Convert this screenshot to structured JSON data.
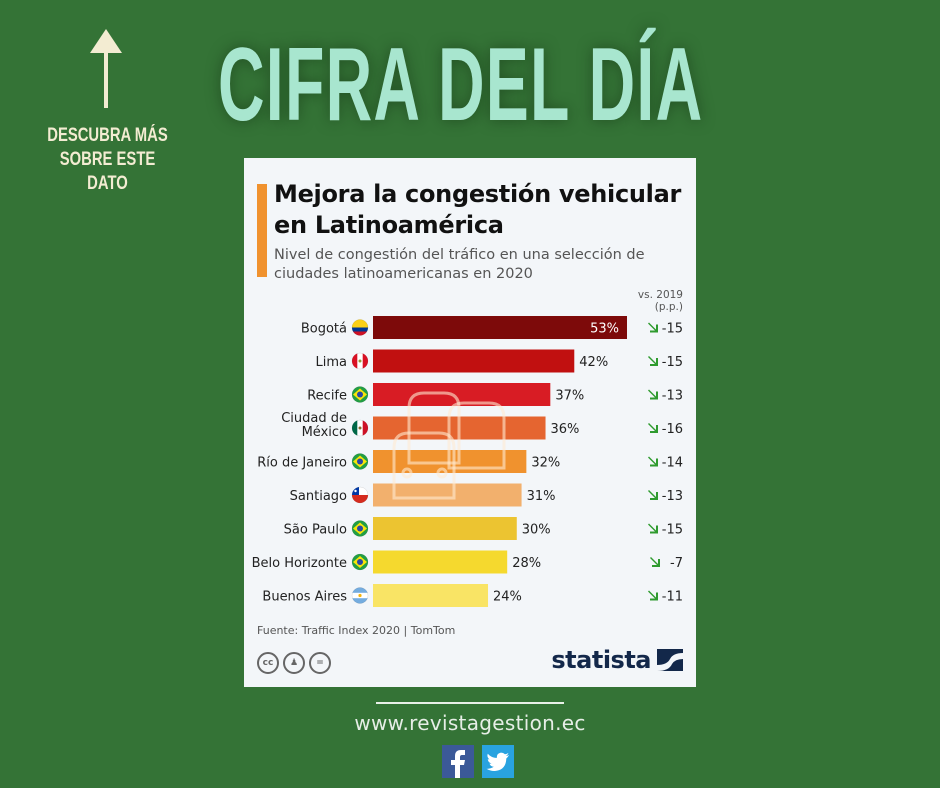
{
  "header": {
    "headline": "CIFRA DEL DÍA",
    "side_note_line1": "DESCUBRA MÁS",
    "side_note_line2": "SOBRE ESTE DATO",
    "arrow_icon": "up-arrow-icon"
  },
  "card": {
    "title": "Mejora la congestión vehicular en Latinoamérica",
    "subtitle": "Nivel de congestión del tráfico en una selección de ciudades latinoamericanas en 2020",
    "vs_label_line1": "vs. 2019",
    "vs_label_line2": "(p.p.)",
    "source": "Fuente: Traffic Index 2020 | TomTom",
    "license_icons": [
      "cc-icon",
      "attribution-icon",
      "no-derivatives-icon"
    ],
    "brand": "statista",
    "accent_color": "#f0922e"
  },
  "chart_data": {
    "type": "bar",
    "orientation": "horizontal",
    "title": "Mejora la congestión vehicular en Latinoamérica",
    "subtitle": "Nivel de congestión del tráfico en una selección de ciudades latinoamericanas en 2020",
    "categories": [
      "Bogotá",
      "Lima",
      "Recife",
      "Ciudad de México",
      "Río de Janeiro",
      "Santiago",
      "São Paulo",
      "Belo Horizonte",
      "Buenos Aires"
    ],
    "values": [
      53,
      42,
      37,
      36,
      32,
      31,
      30,
      28,
      24
    ],
    "value_labels": [
      "53%",
      "42%",
      "37%",
      "36%",
      "32%",
      "31%",
      "30%",
      "28%",
      "24%"
    ],
    "change_vs_2019_pp": [
      -15,
      -15,
      -13,
      -16,
      -14,
      -13,
      -15,
      -7,
      -11
    ],
    "change_labels": [
      "-15",
      "-15",
      "-13",
      "-16",
      "-14",
      "-13",
      "-15",
      "-7",
      "-11"
    ],
    "change_header": "vs. 2019 (p.p.)",
    "countries": [
      "Colombia",
      "Perú",
      "Brasil",
      "México",
      "Brasil",
      "Chile",
      "Brasil",
      "Brasil",
      "Argentina"
    ],
    "colors": [
      "#7d0a0a",
      "#c11010",
      "#d81c24",
      "#e56530",
      "#f0922e",
      "#f2b06d",
      "#ecc431",
      "#f5d92e",
      "#f9e465"
    ],
    "xlim": [
      0,
      53
    ],
    "xlabel": "",
    "ylabel": "",
    "grid": false,
    "legend": "none",
    "source": "Fuente: Traffic Index 2020 | TomTom"
  },
  "footer": {
    "url": "www.revistagestion.ec",
    "social": [
      "facebook-icon",
      "twitter-icon"
    ]
  }
}
